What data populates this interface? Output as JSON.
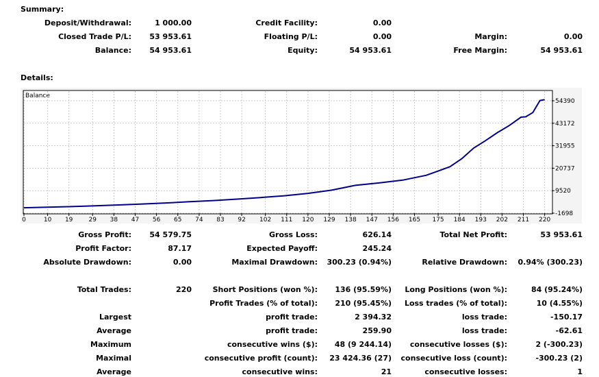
{
  "summary": {
    "title": "Summary:",
    "deposit_label": "Deposit/Withdrawal:",
    "deposit_value": "1 000.00",
    "credit_label": "Credit Facility:",
    "credit_value": "0.00",
    "closed_label": "Closed Trade P/L:",
    "closed_value": "53 953.61",
    "floating_label": "Floating P/L:",
    "floating_value": "0.00",
    "margin_label": "Margin:",
    "margin_value": "0.00",
    "balance_label": "Balance:",
    "balance_value": "54 953.61",
    "equity_label": "Equity:",
    "equity_value": "54 953.61",
    "free_margin_label": "Free Margin:",
    "free_margin_value": "54 953.61"
  },
  "details": {
    "title": "Details:"
  },
  "chart_data": {
    "type": "line",
    "title": "Balance",
    "series": [
      {
        "name": "",
        "x": [
          0,
          10,
          20,
          30,
          40,
          50,
          60,
          70,
          80,
          90,
          100,
          110,
          120,
          130,
          140,
          150,
          160,
          170,
          180,
          185,
          190,
          195,
          200,
          205,
          210,
          212,
          215,
          218,
          220
        ],
        "y": [
          1000,
          1300,
          1600,
          2000,
          2400,
          2900,
          3400,
          4000,
          4600,
          5300,
          6100,
          7000,
          8200,
          9800,
          12200,
          13400,
          14800,
          17200,
          21500,
          25500,
          30800,
          34500,
          38500,
          42000,
          46200,
          46400,
          48500,
          54500,
          54953.61
        ]
      }
    ],
    "x_ticks": [
      "0",
      "10",
      "19",
      "29",
      "38",
      "47",
      "56",
      "65",
      "74",
      "83",
      "92",
      "102",
      "111",
      "120",
      "129",
      "138",
      "147",
      "156",
      "165",
      "175",
      "184",
      "193",
      "202",
      "211",
      "220"
    ],
    "y_ticks": [
      "54390",
      "43172",
      "31955",
      "20737",
      "9520",
      "-1698"
    ],
    "xlim": [
      0,
      223
    ],
    "ylim": [
      -1698,
      54390
    ],
    "grid": true,
    "line_color": "#00008b"
  },
  "stats": {
    "gross_profit_label": "Gross Profit:",
    "gross_profit_value": "54 579.75",
    "gross_loss_label": "Gross Loss:",
    "gross_loss_value": "626.14",
    "total_net_label": "Total Net Profit:",
    "total_net_value": "53 953.61",
    "profit_factor_label": "Profit Factor:",
    "profit_factor_value": "87.17",
    "expected_payoff_label": "Expected Payoff:",
    "expected_payoff_value": "245.24",
    "abs_dd_label": "Absolute Drawdown:",
    "abs_dd_value": "0.00",
    "max_dd_label": "Maximal Drawdown:",
    "max_dd_value": "300.23 (0.94%)",
    "rel_dd_label": "Relative Drawdown:",
    "rel_dd_value": "0.94% (300.23)",
    "total_trades_label": "Total Trades:",
    "total_trades_value": "220",
    "short_label": "Short Positions (won %):",
    "short_value": "136 (95.59%)",
    "long_label": "Long Positions (won %):",
    "long_value": "84 (95.24%)",
    "profit_trades_label": "Profit Trades (% of total):",
    "profit_trades_value": "210 (95.45%)",
    "loss_trades_label": "Loss trades (% of total):",
    "loss_trades_value": "10 (4.55%)",
    "largest_label": "Largest",
    "largest_profit_label": "profit trade:",
    "largest_profit_value": "2 394.32",
    "largest_loss_label": "loss trade:",
    "largest_loss_value": "-150.17",
    "average_label": "Average",
    "average_profit_label": "profit trade:",
    "average_profit_value": "259.90",
    "average_loss_label": "loss trade:",
    "average_loss_value": "-62.61",
    "maximum_label": "Maximum",
    "max_cons_wins_label": "consecutive wins ($):",
    "max_cons_wins_value": "48 (9 244.14)",
    "max_cons_losses_label": "consecutive losses ($):",
    "max_cons_losses_value": "2 (-300.23)",
    "maximal_label": "Maximal",
    "maximal_cons_profit_label": "consecutive profit (count):",
    "maximal_cons_profit_value": "23 424.36 (27)",
    "maximal_cons_loss_label": "consecutive loss (count):",
    "maximal_cons_loss_value": "-300.23 (2)",
    "average2_label": "Average",
    "avg_cons_wins_label": "consecutive wins:",
    "avg_cons_wins_value": "21",
    "avg_cons_losses_label": "consecutive losses:",
    "avg_cons_losses_value": "1"
  }
}
